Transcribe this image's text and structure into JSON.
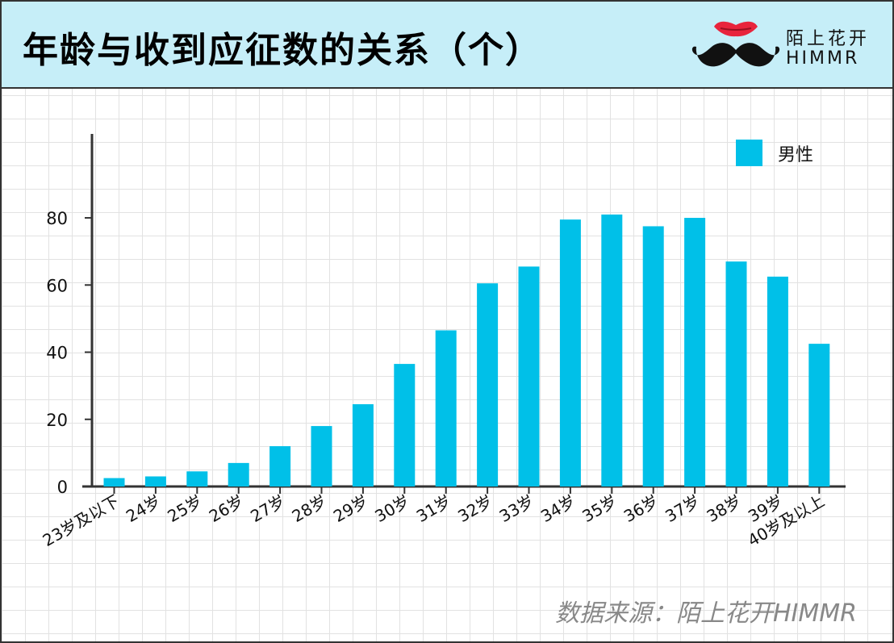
{
  "header": {
    "title": "年龄与收到应征数的关系（个）",
    "brand_cn": "陌上花开",
    "brand_en": "HIMMR"
  },
  "source": "数据来源：陌上花开HIMMR",
  "colors": {
    "bar": "#00c0e8",
    "header_bg": "#c6eef8",
    "axis": "#333333"
  },
  "chart_data": {
    "type": "bar",
    "title": "年龄与收到应征数的关系（个）",
    "xlabel": "",
    "ylabel": "",
    "categories": [
      "23岁及以下",
      "24岁",
      "25岁",
      "26岁",
      "27岁",
      "28岁",
      "29岁",
      "30岁",
      "31岁",
      "32岁",
      "33岁",
      "34岁",
      "35岁",
      "36岁",
      "37岁",
      "38岁",
      "39岁",
      "40岁及以上"
    ],
    "series": [
      {
        "name": "男性",
        "values": [
          2.5,
          3,
          4.5,
          7,
          12,
          18,
          24.5,
          36.5,
          46.5,
          60.5,
          65.5,
          79.5,
          81,
          77.5,
          80,
          67,
          62.5,
          42.5
        ]
      }
    ],
    "yticks": [
      0,
      20,
      40,
      60,
      80
    ],
    "ylim": [
      0,
      105
    ],
    "grid": true,
    "legend": "top-right"
  }
}
